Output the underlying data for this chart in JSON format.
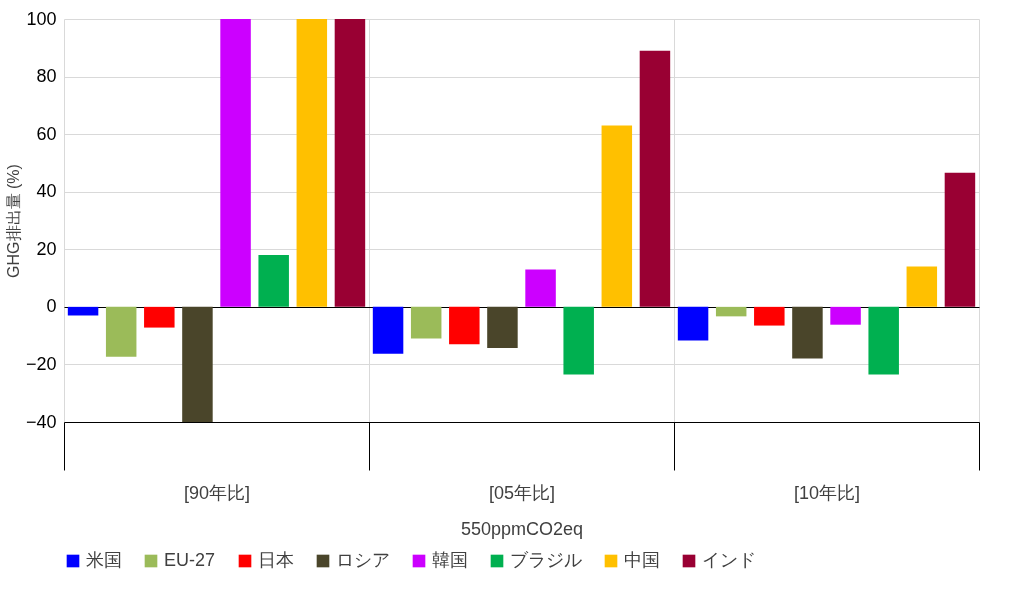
{
  "chart_data": {
    "type": "bar",
    "ylabel": "GHG排出量 (%)",
    "xlabel": "550ppmCO2eq",
    "categories": [
      "[90年比]",
      "[05年比]",
      "[10年比]"
    ],
    "series": [
      {
        "name": "米国",
        "color": "#0000ff",
        "values": [
          -3,
          -16.3,
          -11.7
        ]
      },
      {
        "name": "EU-27",
        "color": "#9bbb59",
        "values": [
          -17.3,
          -11,
          -3.3
        ]
      },
      {
        "name": "日本",
        "color": "#ff0000",
        "values": [
          -7.2,
          -13,
          -6.5
        ]
      },
      {
        "name": "ロシア",
        "color": "#4a452a",
        "values": [
          -40,
          -14.3,
          -17.9
        ]
      },
      {
        "name": "韓国",
        "color": "#cc00ff",
        "values": [
          100,
          13,
          -6.2
        ]
      },
      {
        "name": "ブラジル",
        "color": "#00b050",
        "values": [
          18,
          -23.5,
          -23.5
        ]
      },
      {
        "name": "中国",
        "color": "#ffc000",
        "values": [
          100,
          63,
          14
        ]
      },
      {
        "name": "インド",
        "color": "#990033",
        "values": [
          100,
          89,
          46.6
        ]
      }
    ],
    "ylim": [
      -40,
      100
    ],
    "yticks": [
      -40,
      -20,
      0,
      20,
      40,
      60,
      80,
      100
    ],
    "grid": true,
    "legend": "bottom"
  }
}
